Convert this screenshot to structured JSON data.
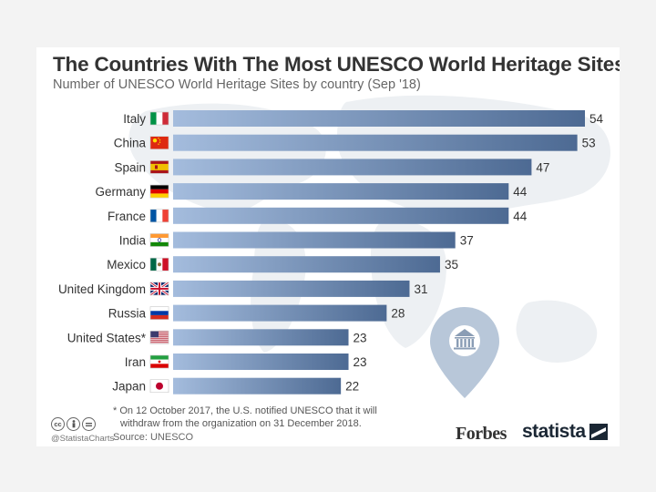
{
  "chart_data": {
    "type": "bar",
    "orientation": "horizontal",
    "title": "The Countries With The Most UNESCO World Heritage Sites",
    "subtitle": "Number of UNESCO World Heritage Sites by country (Sep '18)",
    "categories": [
      "Italy",
      "China",
      "Spain",
      "Germany",
      "France",
      "India",
      "Mexico",
      "United Kingdom",
      "Russia",
      "United States*",
      "Iran",
      "Japan"
    ],
    "values": [
      54,
      53,
      47,
      44,
      44,
      37,
      35,
      31,
      28,
      23,
      23,
      22
    ],
    "flags": [
      "italy-flag-icon",
      "china-flag-icon",
      "spain-flag-icon",
      "germany-flag-icon",
      "france-flag-icon",
      "india-flag-icon",
      "mexico-flag-icon",
      "uk-flag-icon",
      "russia-flag-icon",
      "usa-flag-icon",
      "iran-flag-icon",
      "japan-flag-icon"
    ],
    "xlim": [
      0,
      54
    ],
    "grid": false,
    "xlabel": "",
    "ylabel": "",
    "bar_color_dark": "#4d6a93",
    "bar_color_light": "#a4bcdd"
  },
  "footnote": {
    "line1": "* On 12 October 2017, the U.S. notified UNESCO that it will",
    "line2": "withdraw from the organization on 31 December 2018."
  },
  "source": "Source: UNESCO",
  "handle": "@StatistaCharts",
  "license_icons": [
    "cc-icon",
    "by-icon",
    "nd-icon"
  ],
  "brands": {
    "forbes": "Forbes",
    "statista": "statista"
  },
  "colors": {
    "background": "#ffffff",
    "text": "#333333",
    "map": "#e9edf1",
    "pin": "#b8c7d9"
  }
}
